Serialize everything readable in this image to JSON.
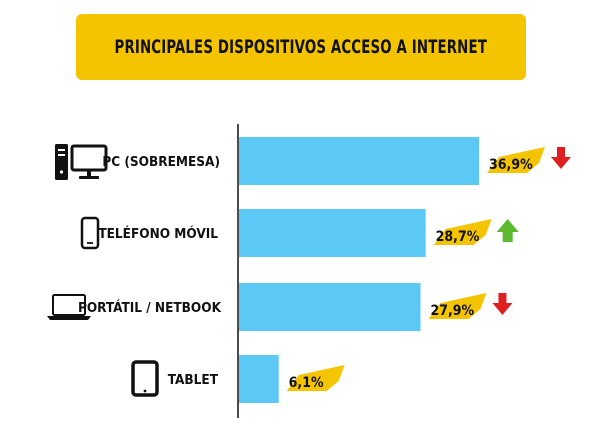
{
  "chart_data": {
    "type": "bar",
    "orientation": "horizontal",
    "title": "PRINCIPALES DISPOSITIVOS ACCESO A INTERNET",
    "categories": [
      "PC (SOBREMESA)",
      "TELÉFONO MÓVIL",
      "PORTÁTIL / NETBOOK",
      "TABLET"
    ],
    "values": [
      36.9,
      28.7,
      27.9,
      6.1
    ],
    "value_labels": [
      "36,9%",
      "28,7%",
      "27,9%",
      "6,1%"
    ],
    "unit": "%",
    "trends": [
      "down",
      "up",
      "down",
      "none"
    ],
    "icons": [
      "desktop-computer-icon",
      "mobile-phone-icon",
      "laptop-icon",
      "tablet-icon"
    ],
    "grid": false,
    "legend": "none",
    "colors": {
      "bar": "#5bc8f5",
      "title_banner": "#f5c400",
      "label_highlight": "#f5c400",
      "trend_down": "#e02020",
      "trend_up": "#5cb82e",
      "axis": "#111111"
    }
  }
}
